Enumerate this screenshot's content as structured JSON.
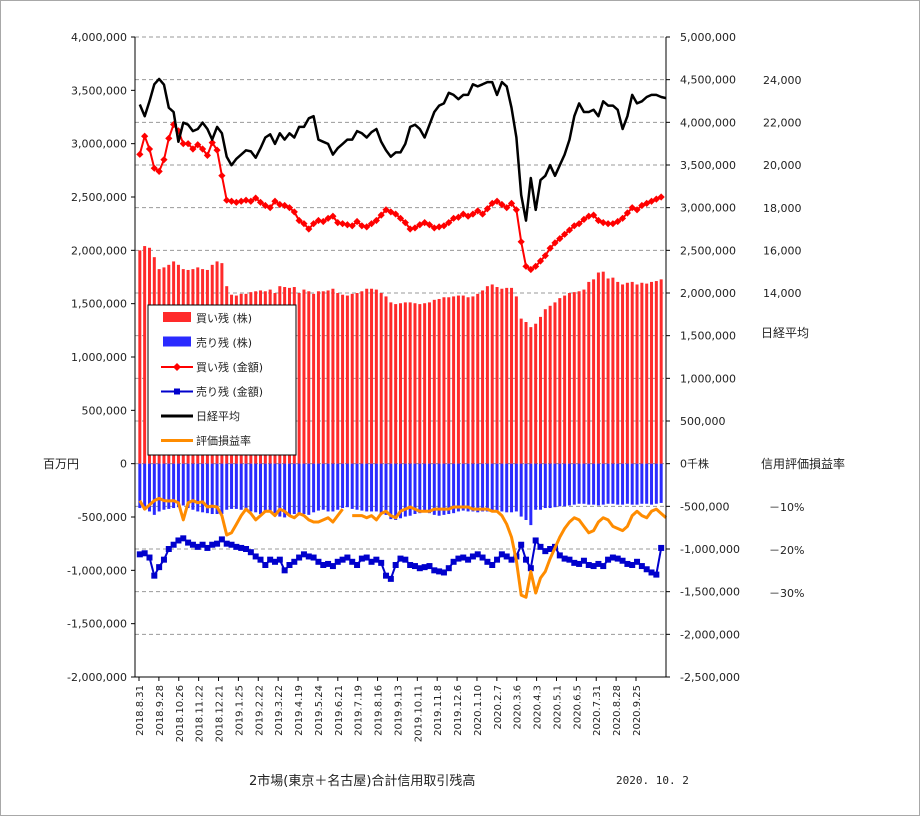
{
  "chart_data": {
    "type": "bar",
    "title": "2市場(東京＋名古屋)合計信用取引残高",
    "date": "2020. 10. 2",
    "left_axis": {
      "unit_label": "百万円",
      "ylim": [
        -2000000,
        4000000
      ],
      "ticks": [
        "4,000,000",
        "3,500,000",
        "3,000,000",
        "2,500,000",
        "2,000,000",
        "1,500,000",
        "1,000,000",
        "500,000",
        "0",
        "-500,000",
        "-1,000,000",
        "-1,500,000",
        "-2,000,000"
      ]
    },
    "right_axis": {
      "unit_label": "千株",
      "ylim": [
        -2500000,
        5000000
      ],
      "ticks": [
        "5,000,000",
        "4,500,000",
        "4,000,000",
        "3,500,000",
        "3,000,000",
        "2,500,000",
        "2,000,000",
        "1,500,000",
        "1,000,000",
        "500,000",
        "0",
        "-500,000",
        "-1,000,000",
        "-1,500,000",
        "-2,000,000",
        "-2,500,000"
      ],
      "zero_suffix": "千株"
    },
    "nikkei_axis": {
      "label": "日経平均",
      "ticks": [
        "24,000",
        "22,000",
        "20,000",
        "18,000",
        "16,000",
        "14,000"
      ],
      "tick_values": [
        24000,
        22000,
        20000,
        18000,
        16000,
        14000
      ]
    },
    "rate_axis": {
      "label": "信用評価損益率",
      "ticks": [
        "－10%",
        "－20%",
        "－30%"
      ],
      "tick_values": [
        -10,
        -20,
        -30
      ]
    },
    "x_labels": [
      "2018.8.31",
      "2018.9.28",
      "2018.10.26",
      "2018.11.22",
      "2018.12.21",
      "2019.1.25",
      "2019.2.22",
      "2019.3.22",
      "2019.4.19",
      "2019.5.24",
      "2019.6.21",
      "2019.7.19",
      "2019.8.16",
      "2019.9.13",
      "2019.10.11",
      "2019.11.8",
      "2019.12.6",
      "2020.1.10",
      "2020.2.7",
      "2020.3.6",
      "2020.4.3",
      "2020.5.1",
      "2020.6.5",
      "2020.7.31",
      "2020.8.28",
      "2020.9.25"
    ],
    "legend": [
      {
        "label": "買い残 (株)",
        "color": "#ff2a2a",
        "kind": "box"
      },
      {
        "label": "売り残 (株)",
        "color": "#2a2aff",
        "kind": "box"
      },
      {
        "label": "買い残 (金額)",
        "color": "#ff0000",
        "kind": "diamond"
      },
      {
        "label": "売り残 (金額)",
        "color": "#0000cc",
        "kind": "square"
      },
      {
        "label": "日経平均",
        "color": "#000000",
        "kind": "line"
      },
      {
        "label": "評価損益率",
        "color": "#ff8c00",
        "kind": "line"
      }
    ],
    "series": [
      {
        "name": "買い残 (株)",
        "color": "#ff2a2a",
        "axis": "right",
        "values": [
          2500000,
          2550000,
          2530000,
          2420000,
          2280000,
          2300000,
          2330000,
          2370000,
          2330000,
          2280000,
          2270000,
          2280000,
          2300000,
          2280000,
          2270000,
          2330000,
          2370000,
          2350000,
          2080000,
          1980000,
          1970000,
          1990000,
          1990000,
          2010000,
          2020000,
          2030000,
          2020000,
          2040000,
          2000000,
          2080000,
          2070000,
          2060000,
          2070000,
          2000000,
          2040000,
          2020000,
          1990000,
          2020000,
          2020000,
          2030000,
          2050000,
          2000000,
          1980000,
          1970000,
          1990000,
          2000000,
          2020000,
          2050000,
          2050000,
          2040000,
          2000000,
          1960000,
          1890000,
          1870000,
          1880000,
          1890000,
          1890000,
          1880000,
          1870000,
          1880000,
          1890000,
          1920000,
          1930000,
          1950000,
          1950000,
          1960000,
          1970000,
          1970000,
          1950000,
          1960000,
          1990000,
          2030000,
          2080000,
          2100000,
          2070000,
          2050000,
          2060000,
          2060000,
          1960000,
          1700000,
          1660000,
          1600000,
          1640000,
          1720000,
          1810000,
          1850000,
          1890000,
          1940000,
          1970000,
          2000000,
          2010000,
          2020000,
          2040000,
          2130000,
          2160000,
          2240000,
          2250000,
          2170000,
          2180000,
          2130000,
          2100000,
          2120000,
          2130000,
          2100000,
          2120000,
          2110000,
          2130000,
          2140000,
          2160000
        ]
      },
      {
        "name": "売り残 (株)",
        "color": "#2a2aff",
        "axis": "right",
        "values": [
          -520000,
          -540000,
          -560000,
          -600000,
          -560000,
          -540000,
          -530000,
          -520000,
          -510000,
          -490000,
          -520000,
          -540000,
          -560000,
          -570000,
          -580000,
          -590000,
          -590000,
          -590000,
          -540000,
          -530000,
          -530000,
          -540000,
          -560000,
          -560000,
          -570000,
          -590000,
          -570000,
          -570000,
          -580000,
          -620000,
          -630000,
          -600000,
          -590000,
          -580000,
          -590000,
          -600000,
          -570000,
          -550000,
          -540000,
          -560000,
          -560000,
          -540000,
          -520000,
          -510000,
          -530000,
          -540000,
          -550000,
          -560000,
          -560000,
          -560000,
          -580000,
          -600000,
          -650000,
          -660000,
          -640000,
          -620000,
          -610000,
          -590000,
          -580000,
          -570000,
          -580000,
          -600000,
          -610000,
          -600000,
          -590000,
          -580000,
          -560000,
          -550000,
          -560000,
          -560000,
          -570000,
          -560000,
          -560000,
          -560000,
          -550000,
          -560000,
          -570000,
          -570000,
          -560000,
          -620000,
          -660000,
          -720000,
          -540000,
          -540000,
          -520000,
          -520000,
          -510000,
          -500000,
          -500000,
          -490000,
          -480000,
          -470000,
          -470000,
          -480000,
          -480000,
          -490000,
          -480000,
          -470000,
          -470000,
          -480000,
          -480000,
          -470000,
          -480000,
          -480000,
          -470000,
          -470000,
          -480000,
          -470000,
          -460000
        ]
      },
      {
        "name": "買い残 (金額)",
        "color": "#ff0000",
        "axis": "left",
        "values": [
          2900000,
          3070000,
          2950000,
          2770000,
          2740000,
          2850000,
          3050000,
          3180000,
          3120000,
          3000000,
          3000000,
          2950000,
          2990000,
          2950000,
          2890000,
          3010000,
          2940000,
          2700000,
          2470000,
          2460000,
          2450000,
          2460000,
          2470000,
          2460000,
          2490000,
          2450000,
          2420000,
          2400000,
          2460000,
          2430000,
          2420000,
          2400000,
          2360000,
          2280000,
          2250000,
          2200000,
          2250000,
          2280000,
          2270000,
          2300000,
          2320000,
          2260000,
          2250000,
          2240000,
          2230000,
          2270000,
          2230000,
          2220000,
          2250000,
          2280000,
          2330000,
          2380000,
          2360000,
          2340000,
          2300000,
          2260000,
          2200000,
          2210000,
          2240000,
          2260000,
          2240000,
          2210000,
          2220000,
          2230000,
          2260000,
          2300000,
          2310000,
          2340000,
          2320000,
          2340000,
          2370000,
          2340000,
          2390000,
          2440000,
          2460000,
          2430000,
          2400000,
          2440000,
          2380000,
          2080000,
          1850000,
          1820000,
          1850000,
          1900000,
          1950000,
          2020000,
          2070000,
          2110000,
          2150000,
          2190000,
          2230000,
          2250000,
          2290000,
          2320000,
          2330000,
          2280000,
          2260000,
          2250000,
          2250000,
          2270000,
          2300000,
          2350000,
          2400000,
          2380000,
          2420000,
          2440000,
          2460000,
          2480000,
          2500000
        ]
      },
      {
        "name": "売り残 (金額)",
        "color": "#0000cc",
        "axis": "left",
        "values": [
          -850000,
          -840000,
          -880000,
          -1050000,
          -970000,
          -900000,
          -800000,
          -760000,
          -720000,
          -700000,
          -740000,
          -760000,
          -780000,
          -760000,
          -790000,
          -760000,
          -750000,
          -710000,
          -750000,
          -760000,
          -780000,
          -790000,
          -800000,
          -830000,
          -870000,
          -900000,
          -950000,
          -900000,
          -920000,
          -900000,
          -1000000,
          -950000,
          -920000,
          -880000,
          -850000,
          -870000,
          -880000,
          -920000,
          -950000,
          -940000,
          -960000,
          -920000,
          -900000,
          -880000,
          -920000,
          -950000,
          -890000,
          -880000,
          -920000,
          -900000,
          -930000,
          -1050000,
          -1080000,
          -950000,
          -890000,
          -900000,
          -950000,
          -960000,
          -980000,
          -970000,
          -960000,
          -1000000,
          -1010000,
          -1020000,
          -980000,
          -920000,
          -890000,
          -880000,
          -900000,
          -870000,
          -850000,
          -880000,
          -920000,
          -950000,
          -900000,
          -850000,
          -870000,
          -900000,
          -870000,
          -760000,
          -900000,
          -980000,
          -720000,
          -780000,
          -820000,
          -800000,
          -780000,
          -860000,
          -890000,
          -900000,
          -930000,
          -940000,
          -910000,
          -950000,
          -960000,
          -940000,
          -960000,
          -900000,
          -880000,
          -890000,
          -910000,
          -940000,
          -950000,
          -920000,
          -960000,
          -990000,
          -1020000,
          -1040000,
          -790000
        ]
      },
      {
        "name": "日経平均",
        "color": "#000000",
        "axis": "nikkei",
        "values": [
          22850,
          22300,
          23000,
          23800,
          24050,
          23780,
          22700,
          22500,
          21100,
          22000,
          21900,
          21600,
          21700,
          22000,
          21700,
          21200,
          21800,
          21500,
          20400,
          20000,
          20300,
          20500,
          20700,
          20650,
          20350,
          20800,
          21300,
          21450,
          21000,
          21500,
          21200,
          21500,
          21300,
          21800,
          21800,
          22200,
          22300,
          21200,
          21100,
          21000,
          20500,
          20800,
          21000,
          21200,
          21200,
          21600,
          21500,
          21300,
          21550,
          21700,
          21100,
          20700,
          20400,
          20600,
          20600,
          21000,
          21800,
          21900,
          21700,
          21300,
          21900,
          22500,
          22800,
          22900,
          23400,
          23300,
          23100,
          23300,
          23300,
          23800,
          23700,
          23800,
          23900,
          23900,
          23300,
          23900,
          23700,
          22700,
          21300,
          18600,
          17400,
          19400,
          17900,
          19300,
          19500,
          20000,
          19500,
          20000,
          20500,
          21200,
          22300,
          22900,
          22500,
          22500,
          22600,
          22300,
          23000,
          22800,
          22800,
          22600,
          21700,
          22300,
          23300,
          22900,
          23000,
          23200,
          23300,
          23300,
          23200,
          23150
        ]
      },
      {
        "name": "評価損益率",
        "color": "#ff8c00",
        "axis": "rate",
        "values": [
          -8.5,
          -10.5,
          -9.5,
          -8.5,
          -8.0,
          -8.5,
          -8.6,
          -8.5,
          -9.0,
          -13.0,
          -9.0,
          -8.5,
          -9.0,
          -8.8,
          -10.0,
          -9.8,
          -10.0,
          -12.0,
          -16.5,
          -16.0,
          -14.0,
          -12.0,
          -10.5,
          -11.5,
          -13.0,
          -12.0,
          -11.0,
          -11.0,
          -12.0,
          -10.5,
          -11.0,
          -12.0,
          -12.5,
          -11.5,
          -12.0,
          -13.0,
          -13.5,
          -13.5,
          -13.0,
          -12.5,
          -13.5,
          -12.0,
          -10.5,
          null,
          -12.0,
          -12.0,
          -12.0,
          -12.5,
          -12.0,
          -13.0,
          -11.5,
          -11.0,
          -12.0,
          -12.5,
          -11.0,
          -10.5,
          -10.0,
          -10.5,
          -11.0,
          -11.0,
          -11.0,
          -10.5,
          -10.5,
          -10.5,
          -10.5,
          -10.0,
          -10.0,
          -10.0,
          -10.0,
          -10.5,
          -10.5,
          -10.5,
          -10.5,
          -11.0,
          -11.0,
          -12.0,
          -14.0,
          -17.0,
          -22.5,
          -30.5,
          -31.0,
          -25.0,
          -30.0,
          -26.5,
          -25.0,
          -22.0,
          -19.5,
          -17.0,
          -15.0,
          -13.5,
          -12.5,
          -13.0,
          -14.5,
          -16.0,
          -15.5,
          -13.5,
          -12.5,
          -13.0,
          -14.5,
          -15.0,
          -15.5,
          -14.5,
          -12.0,
          -11.0,
          -12.0,
          -12.5,
          -11.0,
          -10.5,
          -11.5,
          -12.5
        ]
      }
    ]
  }
}
